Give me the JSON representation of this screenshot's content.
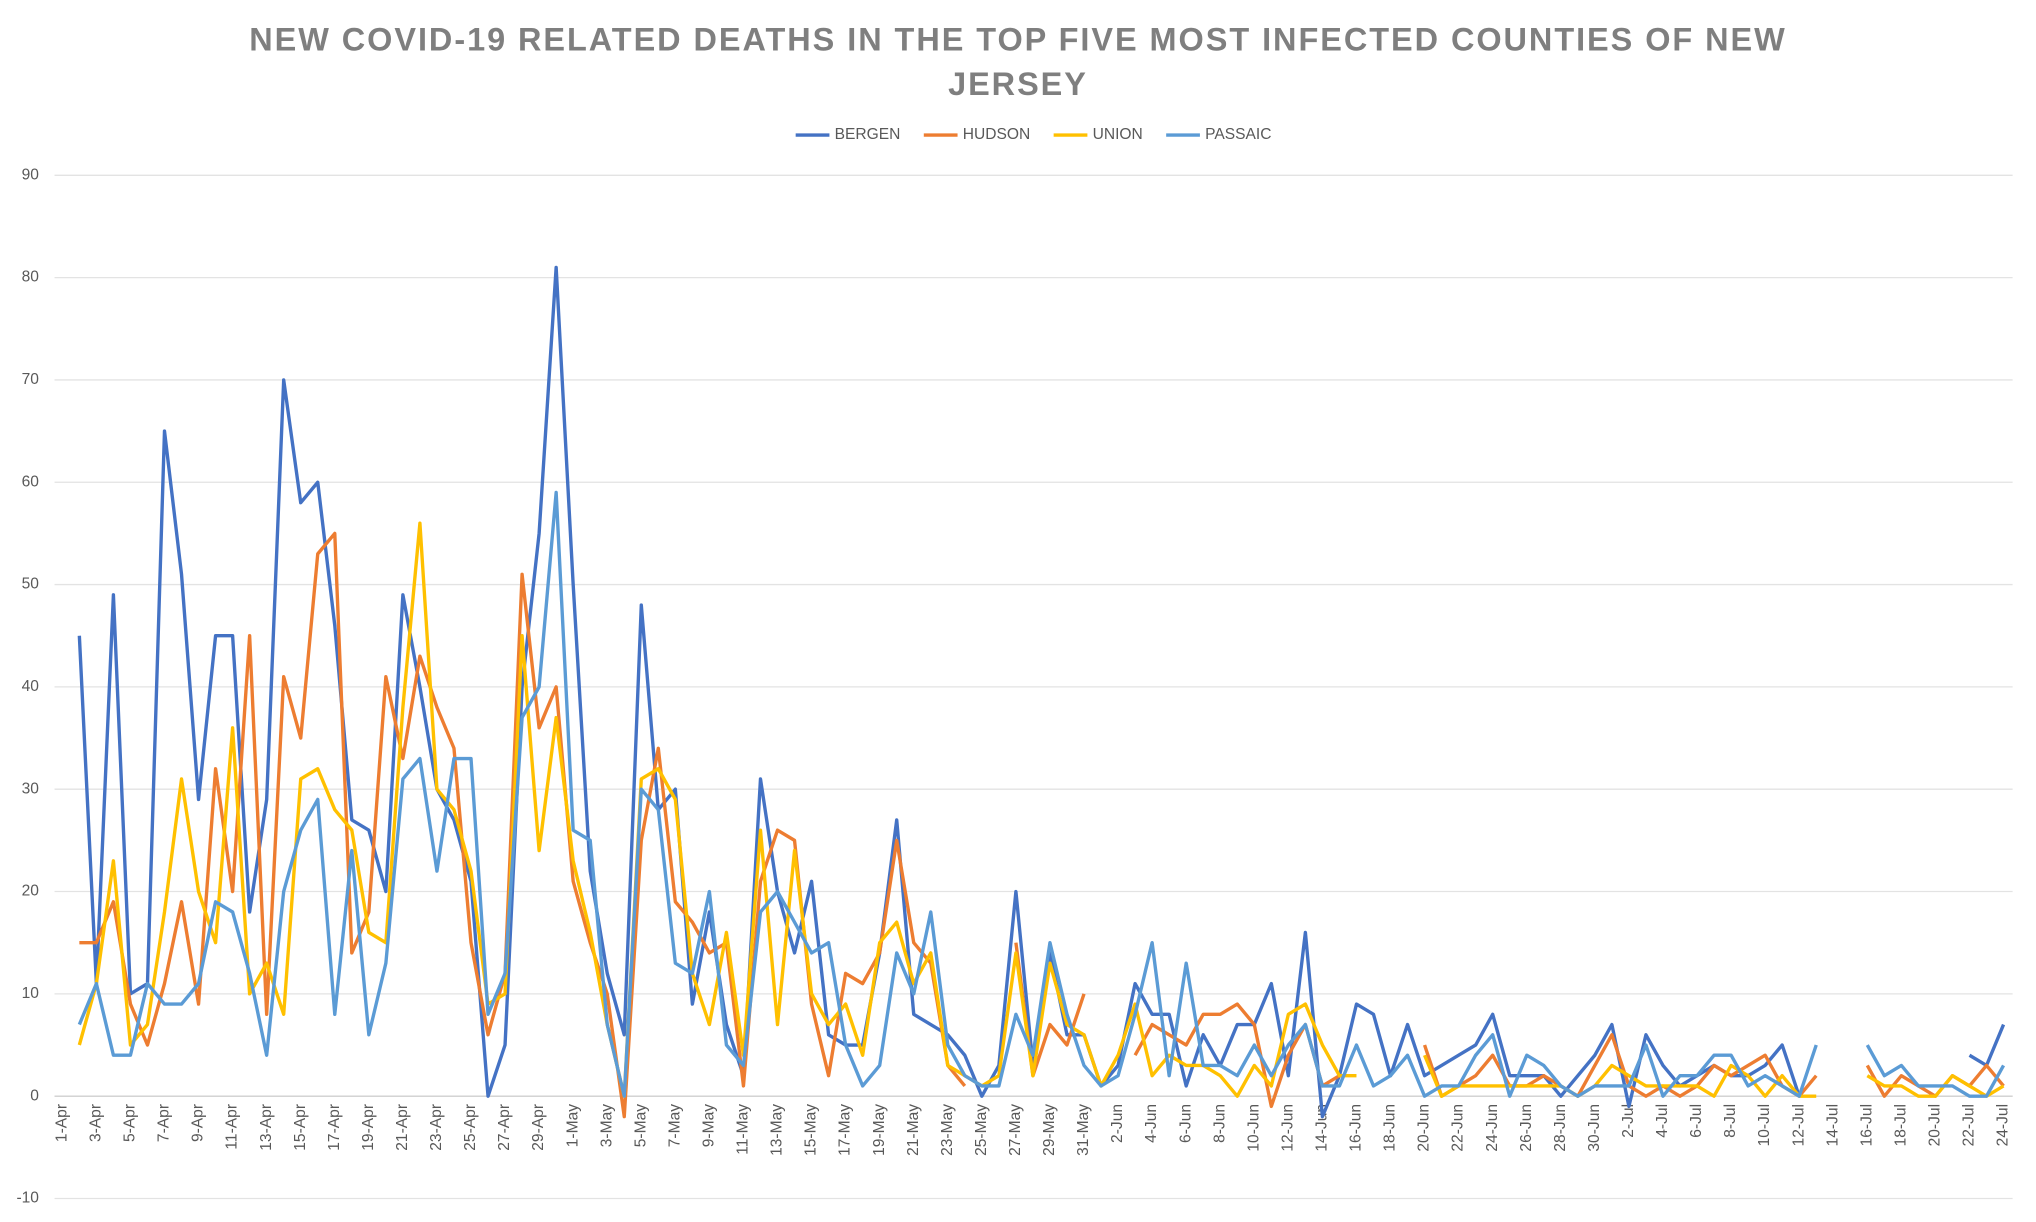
{
  "chart_data": {
    "type": "line",
    "title": "NEW COVID-19 RELATED DEATHS IN THE TOP FIVE MOST INFECTED COUNTIES OF NEW JERSEY",
    "categories": [
      "1-Apr",
      null,
      "3-Apr",
      null,
      "5-Apr",
      null,
      "7-Apr",
      null,
      "9-Apr",
      null,
      "11-Apr",
      null,
      "13-Apr",
      null,
      "15-Apr",
      null,
      "17-Apr",
      null,
      "19-Apr",
      null,
      "21-Apr",
      null,
      "23-Apr",
      null,
      "25-Apr",
      null,
      "27-Apr",
      null,
      "29-Apr",
      null,
      "1-May",
      null,
      "3-May",
      null,
      "5-May",
      null,
      "7-May",
      null,
      "9-May",
      null,
      "11-May",
      null,
      "13-May",
      null,
      "15-May",
      null,
      "17-May",
      null,
      "19-May",
      null,
      "21-May",
      null,
      "23-May",
      null,
      "25-May",
      null,
      "27-May",
      null,
      "29-May",
      null,
      "31-May",
      null,
      "2-Jun",
      null,
      "4-Jun",
      null,
      "6-Jun",
      null,
      "8-Jun",
      null,
      "10-Jun",
      null,
      "12-Jun",
      null,
      "14-Jun",
      null,
      "16-Jun",
      null,
      "18-Jun",
      null,
      "20-Jun",
      null,
      "22-Jun",
      null,
      "24-Jun",
      null,
      "26-Jun",
      null,
      "28-Jun",
      null,
      "30-Jun",
      null,
      "2-Jul",
      null,
      "4-Jul",
      null,
      "6-Jul",
      null,
      "8-Jul",
      null,
      "10-Jul",
      null,
      "12-Jul",
      null,
      "14-Jul",
      null,
      "16-Jul",
      null,
      "18-Jul",
      null,
      "20-Jul",
      null,
      "22-Jul",
      null,
      "24-Jul"
    ],
    "series": [
      {
        "name": "BERGEN",
        "color": "#4472c4",
        "values": [
          null,
          45,
          11,
          49,
          10,
          11,
          65,
          51,
          29,
          45,
          45,
          18,
          29,
          70,
          58,
          60,
          46,
          27,
          26,
          20,
          49,
          40,
          30,
          27,
          21,
          0,
          5,
          40,
          55,
          81,
          50,
          22,
          12,
          6,
          48,
          28,
          30,
          9,
          18,
          7,
          2,
          31,
          20,
          14,
          21,
          6,
          5,
          5,
          14,
          27,
          8,
          7,
          6,
          4,
          0,
          3,
          20,
          3,
          14,
          6,
          6,
          1,
          3,
          11,
          8,
          8,
          1,
          6,
          3,
          7,
          7,
          11,
          2,
          16,
          -2,
          2,
          9,
          8,
          2,
          7,
          2,
          3,
          4,
          5,
          8,
          2,
          2,
          2,
          0,
          2,
          4,
          7,
          -1,
          6,
          3,
          1,
          2,
          3,
          2,
          2,
          3,
          5,
          0,
          null,
          null,
          null,
          null,
          null,
          null,
          null,
          null,
          null,
          4,
          3,
          7
        ]
      },
      {
        "name": "HUDSON",
        "color": "#ed7d31",
        "values": [
          null,
          15,
          15,
          19,
          9,
          5,
          11,
          19,
          9,
          32,
          20,
          45,
          8,
          41,
          35,
          53,
          55,
          14,
          18,
          41,
          33,
          43,
          38,
          34,
          15,
          6,
          12,
          51,
          36,
          40,
          21,
          15,
          10,
          -2,
          25,
          34,
          19,
          17,
          14,
          15,
          1,
          21,
          26,
          25,
          9,
          2,
          12,
          11,
          14,
          25,
          15,
          13,
          3,
          1,
          null,
          null,
          15,
          2,
          7,
          5,
          10,
          null,
          null,
          4,
          7,
          6,
          5,
          8,
          8,
          9,
          7,
          -1,
          4,
          7,
          1,
          2,
          null,
          null,
          null,
          null,
          5,
          0,
          1,
          2,
          4,
          1,
          1,
          2,
          1,
          0,
          3,
          6,
          1,
          0,
          1,
          0,
          1,
          3,
          2,
          3,
          4,
          1,
          0,
          2,
          null,
          null,
          3,
          0,
          2,
          1,
          0,
          2,
          1,
          3,
          1
        ]
      },
      {
        "name": "UNION",
        "color": "#ffc000",
        "values": [
          null,
          5,
          11,
          23,
          5,
          7,
          18,
          31,
          20,
          15,
          36,
          10,
          13,
          8,
          31,
          32,
          28,
          26,
          16,
          15,
          38,
          56,
          30,
          28,
          22,
          9,
          10,
          45,
          24,
          37,
          23,
          16,
          7,
          0,
          31,
          32,
          29,
          12,
          7,
          16,
          4,
          26,
          7,
          24,
          10,
          7,
          9,
          4,
          15,
          17,
          11,
          14,
          3,
          2,
          1,
          2,
          14,
          2,
          13,
          7,
          6,
          1,
          4,
          9,
          2,
          4,
          3,
          3,
          2,
          0,
          3,
          1,
          8,
          9,
          5,
          2,
          2,
          null,
          null,
          null,
          4,
          0,
          1,
          1,
          1,
          1,
          1,
          1,
          1,
          0,
          1,
          3,
          2,
          1,
          1,
          1,
          1,
          0,
          3,
          2,
          0,
          2,
          0,
          0,
          null,
          null,
          2,
          1,
          1,
          0,
          0,
          2,
          1,
          0,
          1
        ]
      },
      {
        "name": "PASSAIC",
        "color": "#5b9bd5",
        "values": [
          null,
          7,
          11,
          4,
          4,
          11,
          9,
          9,
          11,
          19,
          18,
          12,
          4,
          20,
          26,
          29,
          8,
          24,
          6,
          13,
          31,
          33,
          22,
          33,
          33,
          8,
          12,
          37,
          40,
          59,
          26,
          25,
          7,
          0,
          30,
          28,
          13,
          12,
          20,
          5,
          3,
          18,
          20,
          17,
          14,
          15,
          5,
          1,
          3,
          14,
          10,
          18,
          5,
          2,
          1,
          1,
          8,
          4,
          15,
          8,
          3,
          1,
          2,
          8,
          15,
          2,
          13,
          3,
          3,
          2,
          5,
          2,
          5,
          7,
          1,
          1,
          5,
          1,
          2,
          4,
          0,
          1,
          1,
          4,
          6,
          0,
          4,
          3,
          1,
          0,
          1,
          1,
          1,
          5,
          0,
          2,
          2,
          4,
          4,
          1,
          2,
          1,
          0,
          5,
          null,
          null,
          5,
          2,
          3,
          1,
          1,
          1,
          0,
          0,
          3
        ]
      }
    ],
    "ylim": [
      -10,
      90
    ],
    "yticks": [
      -10,
      0,
      10,
      20,
      30,
      40,
      50,
      60,
      70,
      80,
      90
    ],
    "grid": true,
    "legend": "top"
  }
}
